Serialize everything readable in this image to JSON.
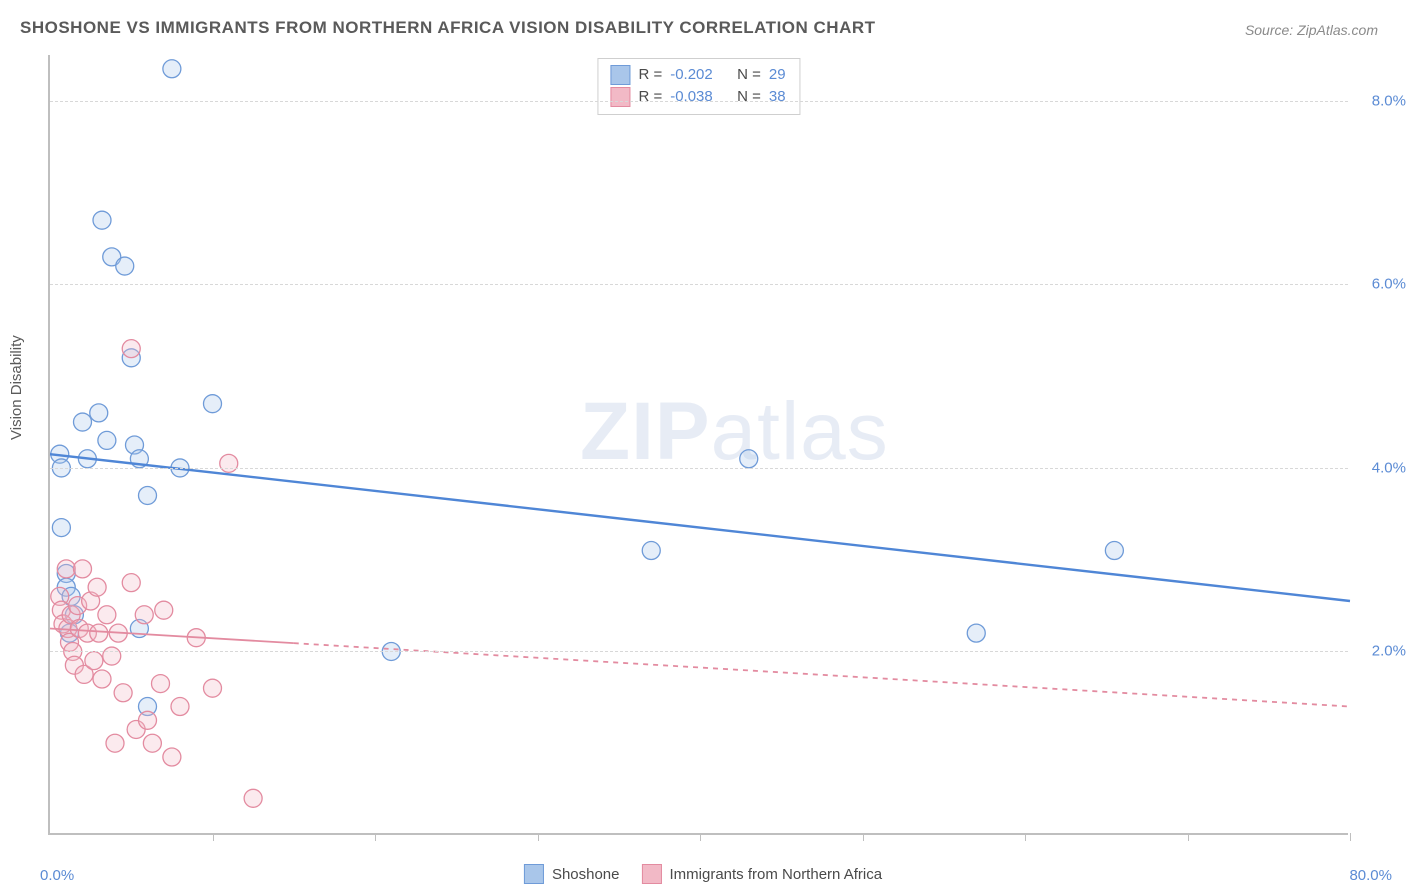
{
  "title": "SHOSHONE VS IMMIGRANTS FROM NORTHERN AFRICA VISION DISABILITY CORRELATION CHART",
  "source": "Source: ZipAtlas.com",
  "ylabel": "Vision Disability",
  "watermark_a": "ZIP",
  "watermark_b": "atlas",
  "chart": {
    "type": "scatter",
    "x_range": [
      0,
      80
    ],
    "y_range": [
      0,
      8.5
    ],
    "x_min_label": "0.0%",
    "x_max_label": "80.0%",
    "y_ticks": [
      {
        "v": 2.0,
        "label": "2.0%"
      },
      {
        "v": 4.0,
        "label": "4.0%"
      },
      {
        "v": 6.0,
        "label": "6.0%"
      },
      {
        "v": 8.0,
        "label": "8.0%"
      }
    ],
    "x_ticks": [
      10,
      20,
      30,
      40,
      50,
      60,
      70,
      80
    ],
    "grid_color": "#d8d8d8",
    "background": "#ffffff",
    "axis_color": "#bfbfbf",
    "tick_label_color": "#5b8bd4",
    "marker_radius": 9,
    "marker_stroke_width": 1.3,
    "marker_fill_opacity": 0.3,
    "series": [
      {
        "id": "shoshone",
        "label": "Shoshone",
        "color_fill": "#a9c6ea",
        "color_stroke": "#6f9bd8",
        "line_color": "#4f86d6",
        "line_width": 2.4,
        "line_dash": "none",
        "trend": {
          "x1": 0,
          "y1": 4.15,
          "x2": 80,
          "y2": 2.55
        },
        "R_label": "R =",
        "R_value": "-0.202",
        "N_label": "N =",
        "N_value": "29",
        "points": [
          {
            "x": 0.6,
            "y": 4.15
          },
          {
            "x": 0.7,
            "y": 4.0
          },
          {
            "x": 0.7,
            "y": 3.35
          },
          {
            "x": 1.0,
            "y": 2.85
          },
          {
            "x": 1.0,
            "y": 2.7
          },
          {
            "x": 1.3,
            "y": 2.6
          },
          {
            "x": 1.5,
            "y": 2.4
          },
          {
            "x": 1.2,
            "y": 2.2
          },
          {
            "x": 2.0,
            "y": 4.5
          },
          {
            "x": 2.3,
            "y": 4.1
          },
          {
            "x": 3.0,
            "y": 4.6
          },
          {
            "x": 3.5,
            "y": 4.3
          },
          {
            "x": 3.8,
            "y": 6.3
          },
          {
            "x": 4.6,
            "y": 6.2
          },
          {
            "x": 5.0,
            "y": 5.2
          },
          {
            "x": 5.2,
            "y": 4.25
          },
          {
            "x": 5.5,
            "y": 4.1
          },
          {
            "x": 5.5,
            "y": 2.25
          },
          {
            "x": 6.0,
            "y": 3.7
          },
          {
            "x": 6.0,
            "y": 1.4
          },
          {
            "x": 7.5,
            "y": 8.35
          },
          {
            "x": 8.0,
            "y": 4.0
          },
          {
            "x": 10.0,
            "y": 4.7
          },
          {
            "x": 3.2,
            "y": 6.7
          },
          {
            "x": 21.0,
            "y": 2.0
          },
          {
            "x": 37.0,
            "y": 3.1
          },
          {
            "x": 43.0,
            "y": 4.1
          },
          {
            "x": 57.0,
            "y": 2.2
          },
          {
            "x": 65.5,
            "y": 3.1
          }
        ]
      },
      {
        "id": "nafrica",
        "label": "Immigrants from Northern Africa",
        "color_fill": "#f2b9c6",
        "color_stroke": "#e38ba0",
        "line_color": "#e38ba0",
        "line_solid_until_x": 15,
        "line_width": 1.8,
        "line_dash": "5,5",
        "trend": {
          "x1": 0,
          "y1": 2.25,
          "x2": 80,
          "y2": 1.4
        },
        "R_label": "R =",
        "R_value": "-0.038",
        "N_label": "N =",
        "N_value": "38",
        "points": [
          {
            "x": 0.6,
            "y": 2.6
          },
          {
            "x": 0.7,
            "y": 2.45
          },
          {
            "x": 0.8,
            "y": 2.3
          },
          {
            "x": 1.0,
            "y": 2.9
          },
          {
            "x": 1.1,
            "y": 2.25
          },
          {
            "x": 1.2,
            "y": 2.1
          },
          {
            "x": 1.3,
            "y": 2.4
          },
          {
            "x": 1.4,
            "y": 2.0
          },
          {
            "x": 1.5,
            "y": 1.85
          },
          {
            "x": 1.7,
            "y": 2.5
          },
          {
            "x": 1.8,
            "y": 2.25
          },
          {
            "x": 2.0,
            "y": 2.9
          },
          {
            "x": 2.1,
            "y": 1.75
          },
          {
            "x": 2.3,
            "y": 2.2
          },
          {
            "x": 2.5,
            "y": 2.55
          },
          {
            "x": 2.7,
            "y": 1.9
          },
          {
            "x": 2.9,
            "y": 2.7
          },
          {
            "x": 3.0,
            "y": 2.2
          },
          {
            "x": 3.2,
            "y": 1.7
          },
          {
            "x": 3.5,
            "y": 2.4
          },
          {
            "x": 3.8,
            "y": 1.95
          },
          {
            "x": 4.0,
            "y": 1.0
          },
          {
            "x": 4.2,
            "y": 2.2
          },
          {
            "x": 4.5,
            "y": 1.55
          },
          {
            "x": 5.0,
            "y": 2.75
          },
          {
            "x": 5.0,
            "y": 5.3
          },
          {
            "x": 5.3,
            "y": 1.15
          },
          {
            "x": 5.8,
            "y": 2.4
          },
          {
            "x": 6.0,
            "y": 1.25
          },
          {
            "x": 6.3,
            "y": 1.0
          },
          {
            "x": 6.8,
            "y": 1.65
          },
          {
            "x": 7.0,
            "y": 2.45
          },
          {
            "x": 7.5,
            "y": 0.85
          },
          {
            "x": 8.0,
            "y": 1.4
          },
          {
            "x": 9.0,
            "y": 2.15
          },
          {
            "x": 10.0,
            "y": 1.6
          },
          {
            "x": 11.0,
            "y": 4.05
          },
          {
            "x": 12.5,
            "y": 0.4
          }
        ]
      }
    ]
  }
}
